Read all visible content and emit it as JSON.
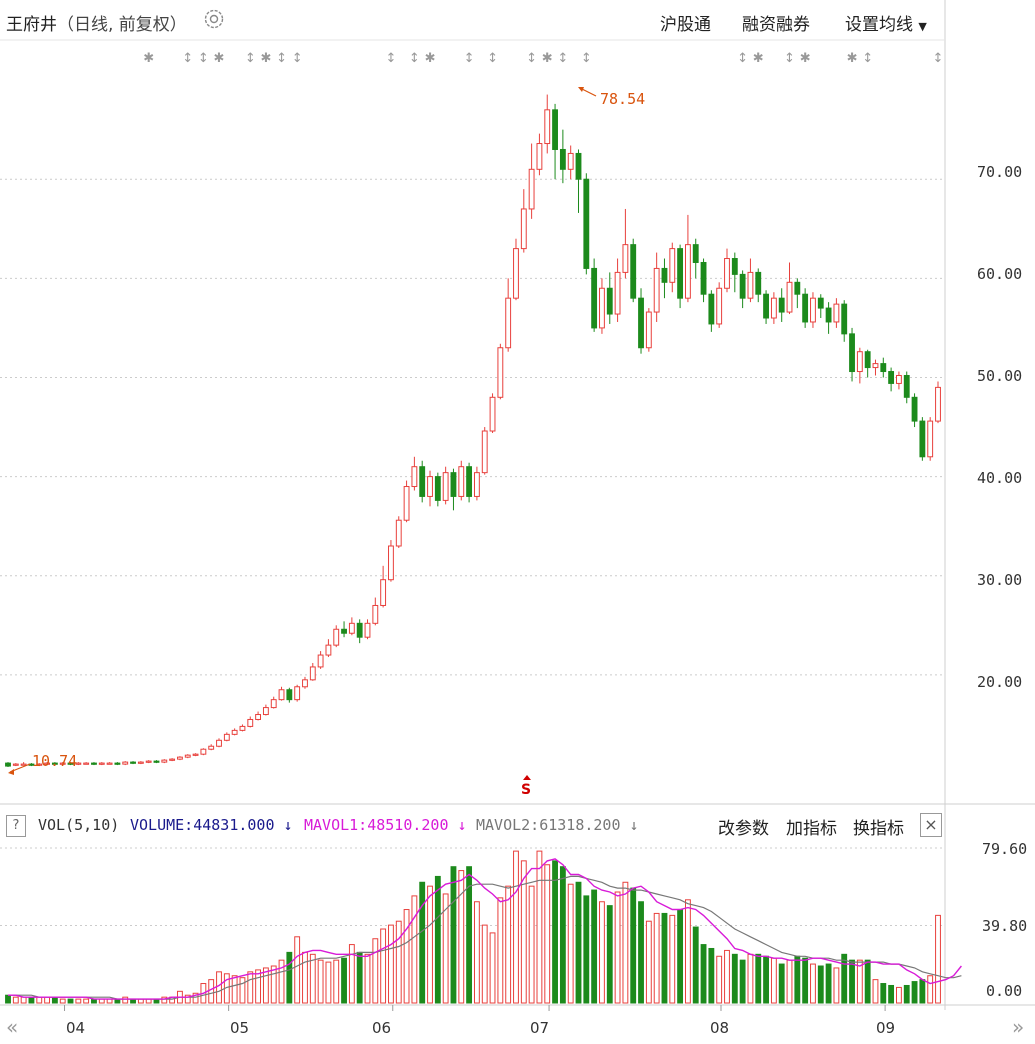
{
  "header": {
    "title": "王府井",
    "subtitle": "（日线, 前复权）",
    "links": [
      "沪股通",
      "融资融券",
      "设置均线"
    ]
  },
  "price_axis": {
    "ticks": [
      "70.00",
      "60.00",
      "50.00",
      "40.00",
      "30.00",
      "20.00"
    ]
  },
  "annotations": {
    "high": "78.54",
    "low": "10.74",
    "signal": "S"
  },
  "volume_panel": {
    "help": "?",
    "indicator": "VOL(5,10)",
    "volume": "VOLUME:44831.000",
    "mavol1": "MAVOL1:48510.200",
    "mavol2": "MAVOL2:61318.200",
    "buttons": [
      "改参数",
      "加指标",
      "换指标"
    ],
    "close": "×",
    "axis_ticks": [
      "79.60",
      "39.80",
      "0.00"
    ]
  },
  "x_axis": {
    "months": [
      "04",
      "05",
      "06",
      "07",
      "08",
      "09"
    ]
  },
  "nav": {
    "left": "«",
    "right": "»"
  },
  "colors": {
    "up": "#e8403c",
    "down": "#1c8a1c",
    "mavol1": "#d81bd8",
    "mavol2": "#777777",
    "accent": "#d9540e"
  },
  "chart_data": {
    "type": "candlestick",
    "price_ylim": [
      10,
      79
    ],
    "volume_ylim": [
      0,
      79.6
    ],
    "candles": [
      [
        11.1,
        10.8,
        11.2,
        10.7,
        4
      ],
      [
        10.9,
        11.0,
        11.1,
        10.8,
        3
      ],
      [
        11.0,
        11.0,
        11.2,
        10.9,
        3
      ],
      [
        11.0,
        10.9,
        11.1,
        10.8,
        3
      ],
      [
        10.9,
        11.0,
        11.1,
        10.8,
        3
      ],
      [
        11.0,
        11.1,
        11.2,
        10.9,
        3
      ],
      [
        11.1,
        11.0,
        11.2,
        10.9,
        3
      ],
      [
        11.0,
        11.1,
        11.2,
        10.9,
        2
      ],
      [
        11.1,
        11.0,
        11.2,
        10.9,
        2
      ],
      [
        11.0,
        11.1,
        11.2,
        10.9,
        2
      ],
      [
        11.1,
        11.1,
        11.2,
        11.0,
        2
      ],
      [
        11.1,
        11.0,
        11.2,
        10.9,
        2
      ],
      [
        11.0,
        11.1,
        11.2,
        10.9,
        2
      ],
      [
        11.1,
        11.1,
        11.2,
        11.0,
        2
      ],
      [
        11.1,
        11.0,
        11.2,
        10.9,
        2
      ],
      [
        11.0,
        11.2,
        11.3,
        10.9,
        3
      ],
      [
        11.2,
        11.1,
        11.3,
        11.0,
        2
      ],
      [
        11.1,
        11.2,
        11.3,
        11.0,
        2
      ],
      [
        11.2,
        11.3,
        11.4,
        11.1,
        2
      ],
      [
        11.3,
        11.2,
        11.4,
        11.1,
        2
      ],
      [
        11.2,
        11.4,
        11.5,
        11.1,
        3
      ],
      [
        11.4,
        11.5,
        11.6,
        11.3,
        3
      ],
      [
        11.5,
        11.7,
        11.8,
        11.4,
        6
      ],
      [
        11.7,
        11.9,
        12.0,
        11.6,
        4
      ],
      [
        11.9,
        12.0,
        12.1,
        11.8,
        5
      ],
      [
        12.0,
        12.5,
        12.6,
        11.9,
        10
      ],
      [
        12.5,
        12.8,
        13.0,
        12.4,
        12
      ],
      [
        12.8,
        13.4,
        13.6,
        12.7,
        16
      ],
      [
        13.4,
        14.0,
        14.2,
        13.3,
        15
      ],
      [
        14.0,
        14.4,
        14.6,
        13.9,
        14
      ],
      [
        14.4,
        14.8,
        15.0,
        14.3,
        13
      ],
      [
        14.8,
        15.5,
        15.8,
        14.7,
        16
      ],
      [
        15.5,
        16.0,
        16.3,
        15.4,
        17
      ],
      [
        16.0,
        16.7,
        17.0,
        15.9,
        18
      ],
      [
        16.7,
        17.5,
        17.8,
        16.6,
        19
      ],
      [
        17.5,
        18.5,
        18.8,
        17.4,
        22
      ],
      [
        18.5,
        17.5,
        18.7,
        17.2,
        26
      ],
      [
        17.5,
        18.8,
        19.0,
        17.3,
        34
      ],
      [
        18.8,
        19.5,
        19.8,
        18.6,
        26
      ],
      [
        19.5,
        20.8,
        21.2,
        19.4,
        25
      ],
      [
        20.8,
        22.0,
        22.4,
        20.6,
        22
      ],
      [
        22.0,
        23.0,
        23.6,
        21.8,
        21
      ],
      [
        23.0,
        24.6,
        25.0,
        22.8,
        22
      ],
      [
        24.6,
        24.2,
        25.4,
        23.8,
        23
      ],
      [
        24.2,
        25.2,
        25.8,
        24.0,
        30
      ],
      [
        25.2,
        23.8,
        25.6,
        23.2,
        26
      ],
      [
        23.8,
        25.2,
        25.6,
        23.6,
        25
      ],
      [
        25.2,
        27.0,
        27.8,
        25.0,
        33
      ],
      [
        27.0,
        29.6,
        31.0,
        26.8,
        38
      ],
      [
        29.6,
        33.0,
        33.6,
        29.4,
        40
      ],
      [
        33.0,
        35.6,
        36.0,
        32.8,
        42
      ],
      [
        35.6,
        39.0,
        39.6,
        35.4,
        48
      ],
      [
        39.0,
        41.0,
        42.0,
        38.6,
        55
      ],
      [
        41.0,
        38.0,
        41.6,
        37.4,
        62
      ],
      [
        38.0,
        40.0,
        40.6,
        37.0,
        60
      ],
      [
        40.0,
        37.6,
        40.4,
        37.0,
        65
      ],
      [
        37.6,
        40.4,
        41.0,
        37.2,
        56
      ],
      [
        40.4,
        38.0,
        40.8,
        36.6,
        70
      ],
      [
        38.0,
        41.0,
        41.6,
        37.6,
        68
      ],
      [
        41.0,
        38.0,
        41.4,
        37.4,
        70
      ],
      [
        38.0,
        40.4,
        41.0,
        37.6,
        52
      ],
      [
        40.4,
        44.6,
        45.0,
        40.2,
        40
      ],
      [
        44.6,
        48.0,
        48.4,
        44.4,
        36
      ],
      [
        48.0,
        53.0,
        53.4,
        47.8,
        54
      ],
      [
        53.0,
        58.0,
        60.0,
        52.6,
        60
      ],
      [
        58.0,
        63.0,
        64.0,
        57.8,
        78
      ],
      [
        63.0,
        67.0,
        69.0,
        62.6,
        73
      ],
      [
        67.0,
        71.0,
        73.6,
        66.0,
        60
      ],
      [
        71.0,
        73.6,
        74.6,
        70.4,
        78
      ],
      [
        73.6,
        77.0,
        78.54,
        72.6,
        71
      ],
      [
        77.0,
        73.0,
        77.6,
        70.0,
        73
      ],
      [
        73.0,
        71.0,
        75.0,
        69.6,
        70
      ],
      [
        71.0,
        72.6,
        73.4,
        70.0,
        61
      ],
      [
        72.6,
        70.0,
        73.0,
        66.6,
        62
      ],
      [
        70.0,
        61.0,
        70.6,
        60.4,
        55
      ],
      [
        61.0,
        55.0,
        62.0,
        54.6,
        58
      ],
      [
        55.0,
        59.0,
        60.0,
        54.4,
        52
      ],
      [
        59.0,
        56.4,
        60.6,
        55.4,
        50
      ],
      [
        56.4,
        60.6,
        62.0,
        55.6,
        57
      ],
      [
        60.6,
        63.4,
        67.0,
        60.0,
        62
      ],
      [
        63.4,
        58.0,
        64.0,
        57.6,
        59
      ],
      [
        58.0,
        53.0,
        59.0,
        52.4,
        52
      ],
      [
        53.0,
        56.6,
        57.0,
        52.6,
        42
      ],
      [
        56.6,
        61.0,
        62.6,
        55.6,
        46
      ],
      [
        61.0,
        59.6,
        62.0,
        58.0,
        46
      ],
      [
        59.6,
        63.0,
        63.6,
        58.6,
        45
      ],
      [
        63.0,
        58.0,
        63.4,
        57.0,
        48
      ],
      [
        58.0,
        63.4,
        66.4,
        57.6,
        53
      ],
      [
        63.4,
        61.6,
        64.0,
        60.0,
        39
      ],
      [
        61.6,
        58.4,
        62.0,
        57.6,
        30
      ],
      [
        58.4,
        55.4,
        58.8,
        54.6,
        28
      ],
      [
        55.4,
        59.0,
        59.6,
        55.0,
        24
      ],
      [
        59.0,
        62.0,
        63.0,
        58.6,
        27
      ],
      [
        62.0,
        60.4,
        62.6,
        58.6,
        25
      ],
      [
        60.4,
        58.0,
        60.8,
        57.0,
        22
      ],
      [
        58.0,
        60.6,
        62.0,
        57.6,
        25
      ],
      [
        60.6,
        58.4,
        61.0,
        57.6,
        25
      ],
      [
        58.4,
        56.0,
        58.8,
        55.4,
        24
      ],
      [
        56.0,
        58.0,
        58.6,
        55.4,
        23
      ],
      [
        58.0,
        56.6,
        59.0,
        55.6,
        20
      ],
      [
        56.6,
        59.6,
        61.6,
        56.4,
        22
      ],
      [
        59.6,
        58.4,
        60.0,
        57.0,
        24
      ],
      [
        58.4,
        55.6,
        59.0,
        55.0,
        23
      ],
      [
        55.6,
        58.0,
        58.6,
        55.0,
        20
      ],
      [
        58.0,
        57.0,
        58.4,
        56.0,
        19
      ],
      [
        57.0,
        55.6,
        57.6,
        54.4,
        20
      ],
      [
        55.6,
        57.4,
        58.0,
        55.0,
        18
      ],
      [
        57.4,
        54.4,
        57.8,
        53.6,
        25
      ],
      [
        54.4,
        50.6,
        55.0,
        49.6,
        22
      ],
      [
        50.6,
        52.6,
        53.0,
        49.4,
        22
      ],
      [
        52.6,
        51.0,
        52.8,
        50.0,
        22
      ],
      [
        51.0,
        51.4,
        51.8,
        50.2,
        12
      ],
      [
        51.4,
        50.6,
        52.0,
        50.0,
        10
      ],
      [
        50.6,
        49.4,
        51.0,
        48.6,
        9
      ],
      [
        49.4,
        50.2,
        50.6,
        48.8,
        8
      ],
      [
        50.2,
        48.0,
        50.6,
        47.4,
        9
      ],
      [
        48.0,
        45.6,
        48.4,
        45.0,
        11
      ],
      [
        45.6,
        42.0,
        46.0,
        41.6,
        12
      ],
      [
        42.0,
        45.6,
        46.0,
        41.6,
        14
      ],
      [
        45.6,
        49.0,
        49.6,
        45.4,
        45
      ]
    ],
    "ma5": [
      4,
      4,
      3,
      3,
      3,
      3,
      3,
      3,
      3,
      3,
      3,
      2,
      2,
      2,
      2,
      2,
      2,
      2,
      2,
      2,
      2,
      3,
      3,
      3,
      4,
      5,
      7,
      9,
      12,
      13,
      14,
      15,
      15,
      16,
      17,
      18,
      20,
      24,
      26,
      27,
      27,
      26,
      25,
      25,
      25,
      24,
      24,
      26,
      28,
      30,
      33,
      38,
      44,
      50,
      55,
      58,
      61,
      62,
      63,
      66,
      63,
      59,
      56,
      52,
      53,
      57,
      64,
      69,
      69,
      73,
      74,
      71,
      66,
      66,
      64,
      60,
      58,
      57,
      55,
      56,
      59,
      60,
      57,
      52,
      50,
      48,
      48,
      49,
      48,
      45,
      41,
      37,
      33,
      28,
      27,
      25,
      24,
      24,
      23,
      23,
      22,
      22,
      22,
      23,
      23,
      22,
      21,
      20,
      20,
      19,
      21,
      21,
      20,
      20,
      20,
      17,
      15,
      12,
      10,
      11,
      12,
      14,
      19
    ],
    "ma10": [
      4,
      4,
      4,
      4,
      3,
      3,
      3,
      3,
      3,
      3,
      3,
      3,
      3,
      3,
      2,
      2,
      2,
      2,
      2,
      2,
      2,
      2,
      3,
      3,
      3,
      4,
      5,
      6,
      8,
      9,
      10,
      12,
      13,
      14,
      15,
      16,
      17,
      19,
      21,
      22,
      23,
      23,
      23,
      24,
      25,
      26,
      26,
      26,
      27,
      28,
      29,
      31,
      34,
      37,
      40,
      44,
      48,
      52,
      56,
      60,
      61,
      61,
      61,
      60,
      59,
      60,
      61,
      62,
      63,
      63,
      63,
      64,
      65,
      65,
      64,
      63,
      62,
      60,
      59,
      59,
      58,
      58,
      57,
      56,
      55,
      54,
      53,
      51,
      50,
      49,
      47,
      44,
      41,
      38,
      36,
      34,
      32,
      30,
      28,
      26,
      25,
      24,
      24,
      23,
      23,
      23,
      22,
      22,
      21,
      21,
      21,
      21,
      21,
      20,
      20,
      19,
      18,
      16,
      15,
      14,
      13,
      13,
      14
    ]
  }
}
